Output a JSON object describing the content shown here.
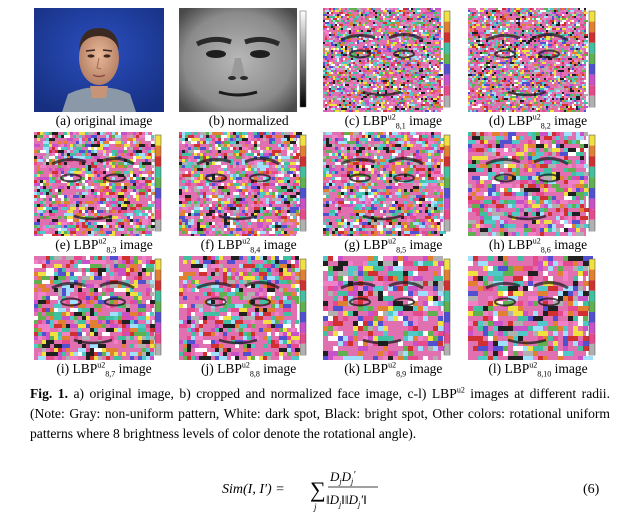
{
  "panels": [
    {
      "id": "a",
      "caption": "(a) original image",
      "kind": "photo"
    },
    {
      "id": "b",
      "caption": "(b) normalized",
      "kind": "gray"
    },
    {
      "id": "c",
      "caption_pre": "(c) LBP",
      "sup": "u2",
      "sub": "8,1",
      "caption_post": " image",
      "kind": "lbp",
      "seed": 1
    },
    {
      "id": "d",
      "caption_pre": "(d) LBP",
      "sup": "u2",
      "sub": "8,2",
      "caption_post": " image",
      "kind": "lbp",
      "seed": 2
    },
    {
      "id": "e",
      "caption_pre": "(e) LBP",
      "sup": "u2",
      "sub": "8,3",
      "caption_post": " image",
      "kind": "lbp",
      "seed": 3
    },
    {
      "id": "f",
      "caption_pre": "(f) LBP",
      "sup": "u2",
      "sub": "8,4",
      "caption_post": " image",
      "kind": "lbp",
      "seed": 4
    },
    {
      "id": "g",
      "caption_pre": "(g) LBP",
      "sup": "u2",
      "sub": "8,5",
      "caption_post": " image",
      "kind": "lbp",
      "seed": 5
    },
    {
      "id": "h",
      "caption_pre": "(h) LBP",
      "sup": "u2",
      "sub": "8,6",
      "caption_post": " image",
      "kind": "lbp",
      "seed": 6
    },
    {
      "id": "i",
      "caption_pre": "(i) LBP",
      "sup": "u2",
      "sub": "8,7",
      "caption_post": " image",
      "kind": "lbp",
      "seed": 7
    },
    {
      "id": "j",
      "caption_pre": "(j) LBP",
      "sup": "u2",
      "sub": "8,8",
      "caption_post": " image",
      "kind": "lbp",
      "seed": 8
    },
    {
      "id": "k",
      "caption_pre": "(k) LBP",
      "sup": "u2",
      "sub": "8,9",
      "caption_post": " image",
      "kind": "lbp",
      "seed": 9
    },
    {
      "id": "l",
      "caption_pre": "(l) LBP",
      "sup": "u2",
      "sub": "8,10",
      "caption_post": " image",
      "kind": "lbp",
      "seed": 10
    }
  ],
  "figure_caption": {
    "label": "Fig. 1.",
    "text_1": " a) original image, b) cropped and normalized face image, c-l) LBP",
    "sup": "u2",
    "text_2": " images at different radii. (Note: Gray: non-uniform pattern, White: dark spot, Black: bright spot, Other colors: rotational uniform patterns where 8 brightness levels of color denote the rotational angle)."
  },
  "equation": {
    "lhs": "Sim(I, I′) = ",
    "sum": "∑",
    "sum_index": "j",
    "numerator": "D",
    "numerator_sub_1": "j",
    "numerator_2": "D",
    "numerator_sub_2": "j",
    "numerator_prime": "′",
    "denominator": "‖D",
    "denominator_sub": "j",
    "denominator_2": "‖‖D",
    "denominator_sub_2": "j",
    "denominator_end": "′‖",
    "number": "(6)"
  },
  "colors": {
    "palette": [
      "#e64a8c",
      "#f080c8",
      "#c850c8",
      "#50c8c8",
      "#40c0a0",
      "#f0e040",
      "#e08030",
      "#60b050",
      "#5050d0",
      "#b0b0b0",
      "#ffffff",
      "#202020",
      "#d03030",
      "#a0e0ff"
    ],
    "photo_bg": "#1f3ea0"
  }
}
